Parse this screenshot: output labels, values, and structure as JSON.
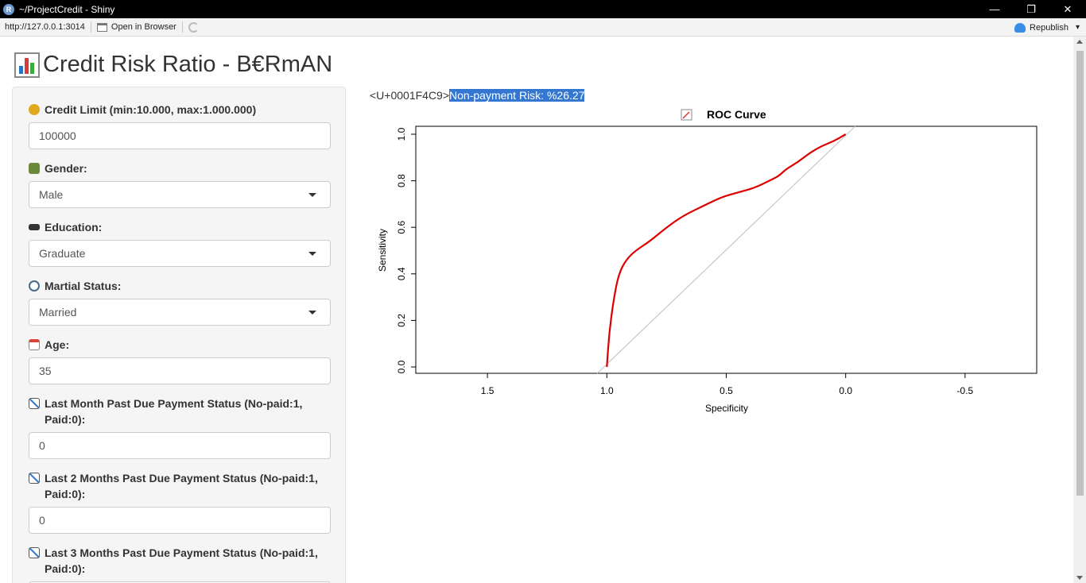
{
  "window": {
    "title": "~/ProjectCredit - Shiny",
    "logo_letter": "R",
    "minimize_glyph": "—",
    "restore_glyph": "❐",
    "close_glyph": "✕"
  },
  "toolbar": {
    "url": "http://127.0.0.1:3014",
    "open_in_browser": "Open in Browser",
    "republish": "Republish",
    "republish_caret": "▾"
  },
  "header": {
    "title": "Credit Risk Ratio - B€RmAN"
  },
  "sidebar": {
    "fields": [
      {
        "icon": "money-bag-icon",
        "label": "Credit Limit (min:10.000, max:1.000.000)",
        "value": "100000",
        "type": "number"
      },
      {
        "icon": "family-icon",
        "label": "Gender:",
        "value": "Male",
        "type": "select"
      },
      {
        "icon": "graduation-cap-icon",
        "label": "Education:",
        "value": "Graduate",
        "type": "select"
      },
      {
        "icon": "ring-icon",
        "label": "Martial Status:",
        "value": "Married",
        "type": "select"
      },
      {
        "icon": "calendar-icon",
        "label": "Age:",
        "value": "35",
        "type": "number"
      },
      {
        "icon": "chart-decreasing-icon",
        "label": "Last Month Past Due Payment Status (No-paid:1, Paid:0):",
        "value": "0",
        "type": "number"
      },
      {
        "icon": "chart-decreasing-icon",
        "label": "Last 2 Months Past Due Payment Status (No-paid:1, Paid:0):",
        "value": "0",
        "type": "number"
      },
      {
        "icon": "chart-decreasing-icon",
        "label": "Last 3 Months Past Due Payment Status (No-paid:1, Paid:0):",
        "value": "",
        "type": "number"
      }
    ]
  },
  "result": {
    "prefix": "<U+0001F4C9>",
    "highlight": "Non-payment Risk: %26.27"
  },
  "chart_data": {
    "type": "line",
    "title": "ROC Curve",
    "xlabel": "Specificity",
    "ylabel": "Sensitivity",
    "xlim": [
      1.8,
      -0.8
    ],
    "ylim": [
      0,
      1
    ],
    "x_reversed": true,
    "x_ticks": [
      "1.5",
      "1.0",
      "0.5",
      "0.0",
      "-0.5"
    ],
    "y_ticks": [
      "0.0",
      "0.2",
      "0.4",
      "0.6",
      "0.8",
      "1.0"
    ],
    "grid": false,
    "series": [
      {
        "color": "#dd0000",
        "x": [
          1.0,
          0.99,
          0.97,
          0.95,
          0.92,
          0.88,
          0.82,
          0.75,
          0.68,
          0.6,
          0.52,
          0.45,
          0.38,
          0.32,
          0.28,
          0.25,
          0.2,
          0.15,
          0.1,
          0.05,
          0.0
        ],
        "y": [
          0.0,
          0.15,
          0.3,
          0.4,
          0.46,
          0.5,
          0.54,
          0.6,
          0.65,
          0.69,
          0.73,
          0.75,
          0.77,
          0.8,
          0.82,
          0.85,
          0.88,
          0.92,
          0.95,
          0.97,
          1.0
        ]
      }
    ],
    "reference_line": {
      "from": [
        1.0,
        0.0
      ],
      "to": [
        0.0,
        1.0
      ],
      "color": "#c8c8c8"
    }
  }
}
